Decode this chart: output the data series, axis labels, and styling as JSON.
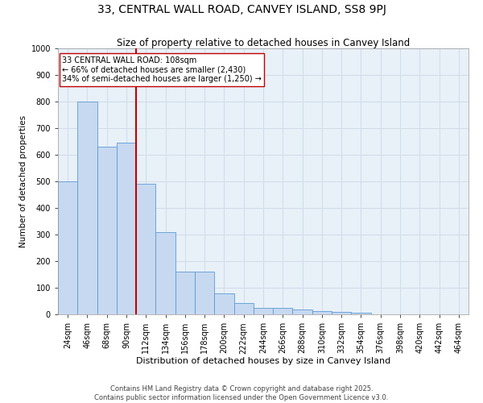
{
  "title": "33, CENTRAL WALL ROAD, CANVEY ISLAND, SS8 9PJ",
  "subtitle": "Size of property relative to detached houses in Canvey Island",
  "xlabel": "Distribution of detached houses by size in Canvey Island",
  "ylabel": "Number of detached properties",
  "categories": [
    "24sqm",
    "46sqm",
    "68sqm",
    "90sqm",
    "112sqm",
    "134sqm",
    "156sqm",
    "178sqm",
    "200sqm",
    "222sqm",
    "244sqm",
    "266sqm",
    "288sqm",
    "310sqm",
    "332sqm",
    "354sqm",
    "376sqm",
    "398sqm",
    "420sqm",
    "442sqm",
    "464sqm"
  ],
  "values": [
    500,
    800,
    630,
    645,
    490,
    310,
    160,
    160,
    80,
    42,
    23,
    23,
    17,
    12,
    10,
    7,
    0,
    0,
    0,
    0,
    0
  ],
  "bar_color": "#c7d9f0",
  "bar_edge_color": "#5b9bd5",
  "vline_index": 3.5,
  "vline_color": "#c00000",
  "annotation_text": "33 CENTRAL WALL ROAD: 108sqm\n← 66% of detached houses are smaller (2,430)\n34% of semi-detached houses are larger (1,250) →",
  "annotation_box_color": "#ffffff",
  "annotation_box_edge_color": "#c00000",
  "annotation_fontsize": 7.0,
  "ylim": [
    0,
    1000
  ],
  "yticks": [
    0,
    100,
    200,
    300,
    400,
    500,
    600,
    700,
    800,
    900,
    1000
  ],
  "grid_color": "#d0dce8",
  "background_color": "#e8f0f8",
  "title_fontsize": 10,
  "subtitle_fontsize": 8.5,
  "xlabel_fontsize": 8,
  "ylabel_fontsize": 7.5,
  "tick_fontsize": 7,
  "footer": "Contains HM Land Registry data © Crown copyright and database right 2025.\nContains public sector information licensed under the Open Government Licence v3.0.",
  "footer_fontsize": 6.0
}
